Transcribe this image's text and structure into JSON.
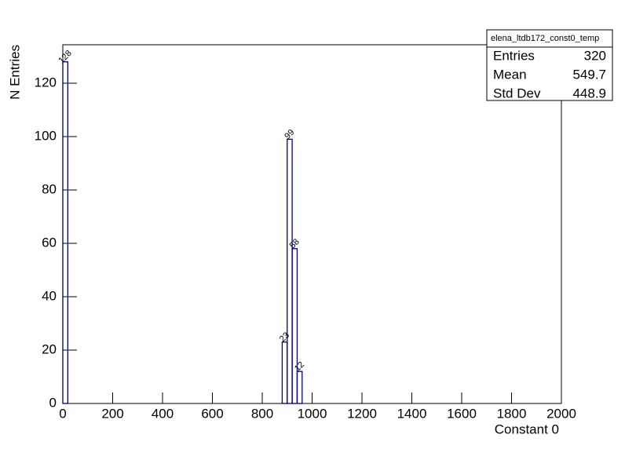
{
  "chart_data": {
    "type": "histogram",
    "x_label": "Constant 0",
    "y_label": "N Entries",
    "bins": [
      0,
      20,
      40,
      60,
      80,
      100,
      120,
      140,
      160,
      180,
      200,
      220,
      240,
      260,
      280,
      300,
      320,
      340,
      360,
      380,
      400,
      420,
      440,
      460,
      480,
      500,
      520,
      540,
      560,
      580,
      600,
      620,
      640,
      660,
      680,
      700,
      720,
      740,
      760,
      780,
      800,
      820,
      840,
      860,
      880,
      900,
      920,
      940,
      960,
      980,
      1000,
      1020,
      1040,
      1060,
      1080,
      1100,
      1120,
      1140,
      1160,
      1180,
      1200,
      1220,
      1240,
      1260,
      1280,
      1300,
      1320,
      1340,
      1360,
      1380,
      1400,
      1420,
      1440,
      1460,
      1480,
      1500,
      1520,
      1540,
      1560,
      1580,
      1600,
      1620,
      1640,
      1660,
      1680,
      1700,
      1720,
      1740,
      1760,
      1780,
      1800,
      1820,
      1840,
      1860,
      1880,
      1900,
      1920,
      1940,
      1960,
      1980,
      2000
    ],
    "counts": [
      128,
      0,
      0,
      0,
      0,
      0,
      0,
      0,
      0,
      0,
      0,
      0,
      0,
      0,
      0,
      0,
      0,
      0,
      0,
      0,
      0,
      0,
      0,
      0,
      0,
      0,
      0,
      0,
      0,
      0,
      0,
      0,
      0,
      0,
      0,
      0,
      0,
      0,
      0,
      0,
      0,
      0,
      0,
      0,
      23,
      99,
      58,
      12,
      0,
      0,
      0,
      0,
      0,
      0,
      0,
      0,
      0,
      0,
      0,
      0,
      0,
      0,
      0,
      0,
      0,
      0,
      0,
      0,
      0,
      0,
      0,
      0,
      0,
      0,
      0,
      0,
      0,
      0,
      0,
      0,
      0,
      0,
      0,
      0,
      0,
      0,
      0,
      0,
      0,
      0,
      0,
      0,
      0,
      0,
      0,
      0,
      0,
      0,
      0,
      0
    ],
    "color": "#000080",
    "xlim": [
      0,
      2000
    ],
    "xticks": [
      0,
      200,
      400,
      600,
      800,
      1000,
      1200,
      1400,
      1600,
      1800,
      2000
    ],
    "ylim": [
      0,
      134.4
    ],
    "yticks": [
      0,
      20,
      40,
      60,
      80,
      100,
      120
    ],
    "stats": {
      "name": "elena_ltdb172_const0_temp",
      "rows": [
        [
          "Entries",
          320
        ],
        [
          "Mean",
          549.7
        ],
        [
          "Std Dev",
          448.9
        ]
      ]
    }
  }
}
